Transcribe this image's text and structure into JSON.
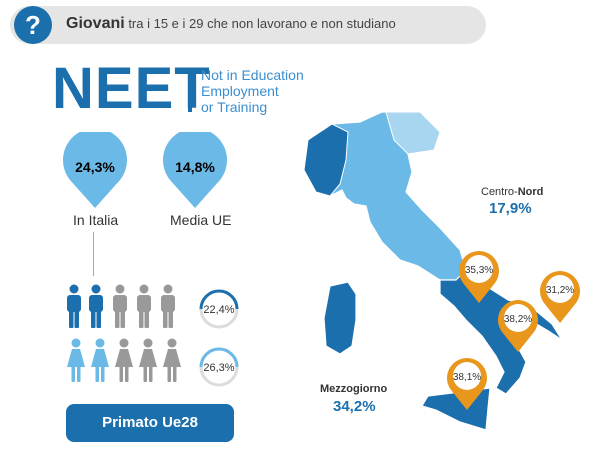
{
  "header": {
    "icon": "question-icon",
    "glyph": "?",
    "title_bold": "Giovani",
    "title_rest": "tra i 15 e i 29 che non lavorano e non studiano"
  },
  "logo": {
    "word": "NEET",
    "line1": "Not in Education",
    "line2": "Employment",
    "line3": "or Training"
  },
  "stats": {
    "italia": {
      "value": "24,3%",
      "label": "In Italia"
    },
    "ue": {
      "value": "14,8%",
      "label": "Media UE"
    }
  },
  "gender": {
    "male_rate": "22,4%",
    "female_rate": "26,3%"
  },
  "primato": "Primato Ue28",
  "map": {
    "centro_nord": {
      "label_a": "Centro-",
      "label_b": "Nord",
      "value": "17,9%"
    },
    "mezzogiorno": {
      "label": "Mezzogiorno",
      "value": "34,2%"
    },
    "pins": [
      "35,3%",
      "31,2%",
      "38,2%",
      "38,1%"
    ]
  },
  "colors": {
    "primary": "#1b6fad",
    "light_blue": "#6ab9e6",
    "orange": "#e8961c",
    "grey": "#999999"
  }
}
